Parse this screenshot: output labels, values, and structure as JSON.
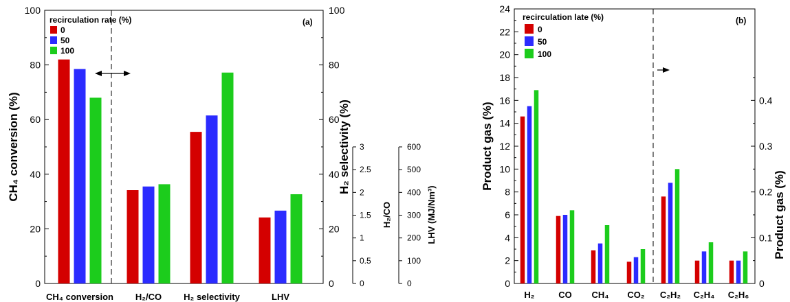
{
  "chart_data": [
    {
      "type": "bar",
      "panel_label": "(a)",
      "legend_title": "recirculation rate (%)",
      "series": [
        {
          "name": "0",
          "color": "#d40000"
        },
        {
          "name": "50",
          "color": "#2b2bff"
        },
        {
          "name": "100",
          "color": "#1ccc1c"
        }
      ],
      "groups": [
        {
          "label": "CH₄ conversion",
          "axis": "ch4",
          "values": [
            82,
            78.5,
            68
          ]
        },
        {
          "label": "H₂/CO",
          "axis": "h2co",
          "values": [
            2.05,
            2.13,
            2.18
          ]
        },
        {
          "label": "H₂ selectivity",
          "axis": "sel",
          "values": [
            55.5,
            61.5,
            77.2
          ]
        },
        {
          "label": "LHV",
          "axis": "lhv",
          "values": [
            290,
            320,
            392
          ]
        }
      ],
      "axes": {
        "ch4": {
          "label": "CH₄ conversion (%)",
          "ylim": [
            0,
            100
          ],
          "ticks": [
            "0",
            "20",
            "40",
            "60",
            "80",
            "100"
          ]
        },
        "sel": {
          "label": "H₂ selectivity (%)",
          "ylim": [
            0,
            100
          ],
          "ticks": [
            "0",
            "20",
            "40",
            "60",
            "80",
            "100"
          ]
        },
        "h2co": {
          "label": "H₂/CO",
          "ylim": [
            0,
            6
          ],
          "ticks": [
            "0",
            "0.5",
            "1",
            "1.5",
            "2",
            "2.5",
            "3"
          ]
        },
        "lhv": {
          "label": "LHV (MJ/Nm³)",
          "ylim": [
            0,
            1200
          ],
          "ticks": [
            "0",
            "100",
            "200",
            "300",
            "400",
            "500",
            "600"
          ]
        }
      },
      "divider_after_group": 0,
      "annotation": "double-headed arrow"
    },
    {
      "type": "bar",
      "panel_label": "(b)",
      "legend_title": "recirculation late (%)",
      "series": [
        {
          "name": "0",
          "color": "#d40000"
        },
        {
          "name": "50",
          "color": "#2b2bff"
        },
        {
          "name": "100",
          "color": "#1ccc1c"
        }
      ],
      "categories": [
        "H₂",
        "CO",
        "CH₄",
        "CO₂",
        "C₂H₂",
        "C₂H₄",
        "C₂H₆"
      ],
      "left_axis": {
        "label": "Product gas (%)",
        "ylim": [
          0,
          24
        ],
        "ticks": [
          "0",
          "2",
          "4",
          "6",
          "8",
          "10",
          "12",
          "14",
          "16",
          "18",
          "20",
          "22",
          "24"
        ]
      },
      "right_axis": {
        "label": "Product gas (%)",
        "ylim": [
          0,
          0.6
        ],
        "ticks": [
          "0",
          "0.1",
          "0.2",
          "0.3",
          "0.4"
        ]
      },
      "values_left": [
        [
          14.6,
          15.5,
          16.9
        ],
        [
          5.9,
          6.0,
          6.4
        ],
        [
          2.9,
          3.5,
          5.1
        ],
        [
          1.9,
          2.3,
          3.0
        ]
      ],
      "values_right": [
        [
          0.19,
          0.22,
          0.25
        ],
        [
          0.05,
          0.07,
          0.09
        ],
        [
          0.05,
          0.05,
          0.07
        ]
      ],
      "divider_after_category": 3,
      "annotation": "arrow pointing right"
    }
  ]
}
